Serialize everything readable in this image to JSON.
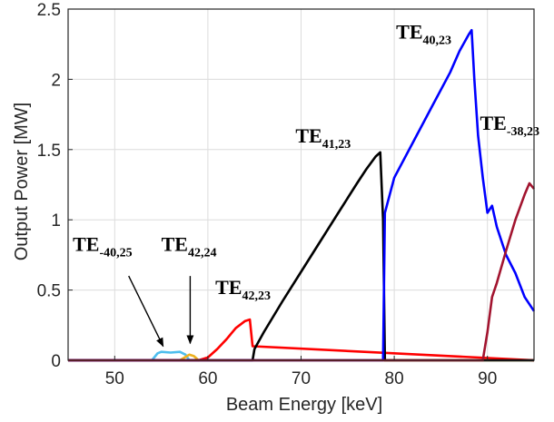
{
  "chart_data": {
    "type": "line",
    "title": "",
    "xlabel": "Beam Energy [keV]",
    "ylabel": "Output Power [MW]",
    "xlim": [
      45,
      95
    ],
    "ylim": [
      0,
      2.5
    ],
    "xticks": [
      "50",
      "60",
      "70",
      "80",
      "90"
    ],
    "yticks": [
      "0",
      "0.5",
      "1",
      "1.5",
      "2",
      "2.5"
    ],
    "grid": true,
    "series": [
      {
        "color": "#4DBEEE",
        "x": [
          45,
          54,
          54.6,
          55,
          56,
          57,
          57.6,
          58,
          95
        ],
        "y": [
          0,
          0,
          0.05,
          0.06,
          0.055,
          0.06,
          0.04,
          0,
          0
        ]
      },
      {
        "color": "#EDB120",
        "x": [
          45,
          57,
          57.5,
          58,
          58.5,
          59,
          95
        ],
        "y": [
          0,
          0,
          0.02,
          0.04,
          0.03,
          0,
          0
        ]
      },
      {
        "color": "#FF0000",
        "x": [
          45,
          59,
          60,
          61,
          62,
          63,
          64,
          64.5,
          64.8,
          95
        ],
        "y": [
          0,
          0,
          0.02,
          0.08,
          0.15,
          0.23,
          0.28,
          0.29,
          0.1,
          0
        ]
      },
      {
        "color": "#000000",
        "x": [
          45,
          64.8,
          65,
          66,
          68,
          70,
          72,
          74,
          76,
          77,
          78,
          78.5,
          78.8,
          79,
          95
        ],
        "y": [
          0,
          0,
          0.08,
          0.2,
          0.42,
          0.63,
          0.84,
          1.05,
          1.26,
          1.36,
          1.45,
          1.48,
          1.0,
          0,
          0
        ]
      },
      {
        "color": "#0000FF",
        "x": [
          45,
          78.8,
          79,
          80,
          82,
          84,
          86,
          87,
          88,
          88.3,
          88.6,
          89,
          89.5,
          90,
          90.5,
          91,
          91.5,
          92,
          93,
          94,
          95
        ],
        "y": [
          0,
          0,
          1.05,
          1.3,
          1.55,
          1.8,
          2.05,
          2.2,
          2.32,
          2.35,
          2.0,
          1.6,
          1.3,
          1.05,
          1.1,
          0.95,
          0.85,
          0.75,
          0.62,
          0.45,
          0.35
        ]
      },
      {
        "color": "#A2142F",
        "x": [
          45,
          89.5,
          90,
          90.5,
          91,
          92,
          93,
          94,
          94.5,
          95
        ],
        "y": [
          0,
          0,
          0.2,
          0.45,
          0.55,
          0.78,
          1.0,
          1.18,
          1.26,
          1.22
        ]
      }
    ],
    "annotations": [
      {
        "base": "TE",
        "sub": "-40,25",
        "x": 45.5,
        "y": 0.78,
        "arrow_from": [
          51.5,
          0.6
        ],
        "arrow_to": [
          55.2,
          0.1
        ]
      },
      {
        "base": "TE",
        "sub": "42,24",
        "x": 55,
        "y": 0.78,
        "arrow_from": [
          58.1,
          0.6
        ],
        "arrow_to": [
          58.1,
          0.12
        ]
      },
      {
        "base": "TE",
        "sub": "42,23",
        "x": 60.8,
        "y": 0.47
      },
      {
        "base": "TE",
        "sub": "41,23",
        "x": 69.4,
        "y": 1.55
      },
      {
        "base": "TE",
        "sub": "40,23",
        "x": 80.2,
        "y": 2.29
      },
      {
        "base": "TE",
        "sub": "-38,23",
        "x": 89.2,
        "y": 1.64
      }
    ]
  }
}
